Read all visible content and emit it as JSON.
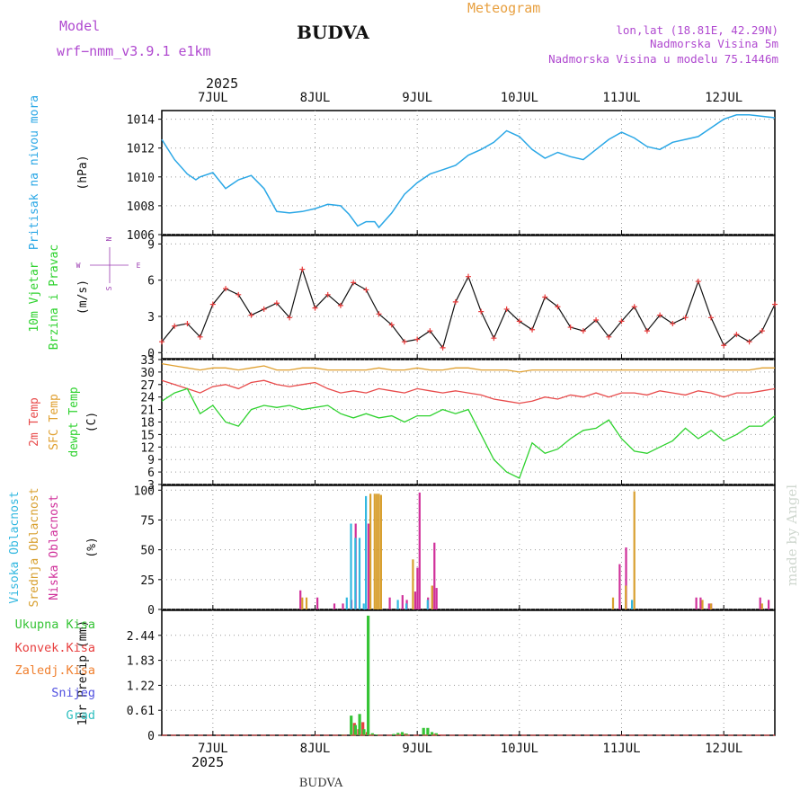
{
  "header": {
    "model_label": "Model",
    "model_name": "wrf−nmm_v3.9.1  e1km",
    "station": "BUDVA",
    "chart_kind": "Meteogram",
    "lonlat": "lon,lat (18.81E, 42.29N)",
    "elevation": "Nadmorska Visina 5m",
    "model_elevation": "Nadmorska Visina u modelu 75.1446m",
    "credit": "made by Angel",
    "footer_station": "BUDVA"
  },
  "time_axis": {
    "year_top": "2025",
    "year_bottom": "2025",
    "day_labels": [
      "7JUL",
      "8JUL",
      "9JUL",
      "10JUL",
      "11JUL",
      "12JUL"
    ],
    "start_hour": 0,
    "end_hour": 144,
    "day_hours": [
      12,
      36,
      60,
      84,
      108,
      132
    ]
  },
  "colors": {
    "pressure": "#2aa7e6",
    "wind_speed": "#111111",
    "wind_marker": "#e83a3a",
    "t2m": "#e84a4a",
    "sfc": "#e0a030",
    "dewpt": "#2fd22f",
    "cloud_high": "#32b8e0",
    "cloud_mid": "#d8a030",
    "cloud_low": "#d0309a",
    "total_precip": "#36c436",
    "conv_precip": "#e84040",
    "grid_precip": "#f08030",
    "snow": "#5050e0",
    "hail": "#30c0c0",
    "compass": "#9a3ab0",
    "header_purple": "#b04ad0",
    "header_orange": "#e8a040"
  },
  "chart_data": [
    {
      "id": "pressure",
      "type": "line",
      "title": "",
      "ylabel_lines": [
        "Pritisak na nivou mora",
        "(hPa)"
      ],
      "ylim": [
        1006,
        1014.6
      ],
      "yticks": [
        1006,
        1008,
        1010,
        1012,
        1014
      ],
      "grid": true,
      "x_hours": [
        0,
        3,
        6,
        8,
        9,
        12,
        15,
        18,
        21,
        24,
        27,
        30,
        33,
        36,
        39,
        42,
        44,
        46,
        48,
        50,
        51,
        54,
        57,
        60,
        63,
        66,
        69,
        72,
        75,
        78,
        81,
        84,
        87,
        90,
        93,
        96,
        99,
        102,
        105,
        108,
        111,
        114,
        117,
        120,
        123,
        126,
        129,
        132,
        135,
        138,
        141,
        144
      ],
      "values": [
        1012.6,
        1011.2,
        1010.2,
        1009.8,
        1010.0,
        1010.3,
        1009.2,
        1009.8,
        1010.1,
        1009.2,
        1007.6,
        1007.5,
        1007.6,
        1007.8,
        1008.1,
        1008.0,
        1007.4,
        1006.6,
        1006.9,
        1006.9,
        1006.5,
        1007.5,
        1008.8,
        1009.6,
        1010.2,
        1010.5,
        1010.8,
        1011.5,
        1011.9,
        1012.4,
        1013.2,
        1012.8,
        1011.9,
        1011.3,
        1011.7,
        1011.4,
        1011.2,
        1011.9,
        1012.6,
        1013.1,
        1012.7,
        1012.1,
        1011.9,
        1012.4,
        1012.6,
        1012.8,
        1013.4,
        1014.0,
        1014.3,
        1014.3,
        1014.2,
        1014.1
      ]
    },
    {
      "id": "wind",
      "type": "line",
      "title": "",
      "ylabel_lines": [
        "10m Vjetar",
        "Brzina i Pravac",
        "(m/s)"
      ],
      "compass": {
        "north": "N",
        "south": "S",
        "east": "E",
        "west": "W"
      },
      "ylim": [
        -0.5,
        9.7
      ],
      "yticks": [
        0,
        3,
        6,
        9
      ],
      "grid": true,
      "x_hours": [
        0,
        3,
        6,
        9,
        12,
        15,
        18,
        21,
        24,
        27,
        30,
        33,
        36,
        39,
        42,
        45,
        48,
        51,
        54,
        57,
        60,
        63,
        66,
        69,
        72,
        75,
        78,
        81,
        84,
        87,
        90,
        93,
        96,
        99,
        102,
        105,
        108,
        111,
        114,
        117,
        120,
        123,
        126,
        129,
        132,
        135,
        138,
        141,
        144
      ],
      "values": [
        0.9,
        2.2,
        2.4,
        1.3,
        4.0,
        5.3,
        4.8,
        3.1,
        3.6,
        4.1,
        2.9,
        6.9,
        3.7,
        4.8,
        3.9,
        5.8,
        5.2,
        3.2,
        2.3,
        0.9,
        1.1,
        1.8,
        0.4,
        4.2,
        6.3,
        3.4,
        1.2,
        3.6,
        2.6,
        1.9,
        4.6,
        3.8,
        2.1,
        1.8,
        2.7,
        1.3,
        2.6,
        3.8,
        1.8,
        3.1,
        2.4,
        2.9,
        5.9,
        2.9,
        0.6,
        1.5,
        0.9,
        1.8,
        4.0
      ]
    },
    {
      "id": "temperature",
      "type": "line",
      "title": "",
      "ylabel_lines": [
        "2m Temp",
        "SFC Temp",
        "dewpt Temp",
        "(C)"
      ],
      "ylim": [
        3,
        33
      ],
      "yticks": [
        3,
        6,
        9,
        12,
        15,
        18,
        21,
        24,
        27,
        30,
        33
      ],
      "grid": true,
      "x_hours": [
        0,
        3,
        6,
        9,
        12,
        15,
        18,
        21,
        24,
        27,
        30,
        33,
        36,
        39,
        42,
        45,
        48,
        51,
        54,
        57,
        60,
        63,
        66,
        69,
        72,
        75,
        78,
        81,
        84,
        87,
        90,
        93,
        96,
        99,
        102,
        105,
        108,
        111,
        114,
        117,
        120,
        123,
        126,
        129,
        132,
        135,
        138,
        141,
        144
      ],
      "series": [
        {
          "name": "2m Temp",
          "color_key": "t2m",
          "values": [
            28.0,
            27.0,
            26.0,
            25.0,
            26.5,
            27.0,
            26.0,
            27.5,
            28.0,
            27.0,
            26.5,
            27.0,
            27.5,
            26.0,
            25.0,
            25.5,
            25.0,
            26.0,
            25.5,
            25.0,
            26.0,
            25.5,
            25.0,
            25.5,
            25.0,
            24.5,
            23.5,
            23.0,
            22.5,
            23.0,
            24.0,
            23.5,
            24.5,
            24.0,
            25.0,
            24.0,
            25.0,
            25.0,
            24.5,
            25.5,
            25.0,
            24.5,
            25.5,
            25.0,
            24.0,
            25.0,
            25.0,
            25.5,
            26.0
          ]
        },
        {
          "name": "SFC Temp",
          "color_key": "sfc",
          "values": [
            32.0,
            31.5,
            31.0,
            30.5,
            31.0,
            31.0,
            30.5,
            31.0,
            31.5,
            30.5,
            30.5,
            31.0,
            31.0,
            30.5,
            30.5,
            30.5,
            30.5,
            31.0,
            30.5,
            30.5,
            31.0,
            30.5,
            30.5,
            31.0,
            31.0,
            30.5,
            30.5,
            30.5,
            30.0,
            30.5,
            30.5,
            30.5,
            30.5,
            30.5,
            30.5,
            30.5,
            30.5,
            30.5,
            30.5,
            30.5,
            30.5,
            30.5,
            30.5,
            30.5,
            30.5,
            30.5,
            30.5,
            31.0,
            31.0
          ]
        },
        {
          "name": "dewpt Temp",
          "color_key": "dewpt",
          "values": [
            23.0,
            25.0,
            26.0,
            20.0,
            22.0,
            18.0,
            17.0,
            21.0,
            22.0,
            21.5,
            22.0,
            21.0,
            21.5,
            22.0,
            20.0,
            19.0,
            20.0,
            19.0,
            19.5,
            18.0,
            19.5,
            19.5,
            21.0,
            20.0,
            21.0,
            15.0,
            9.0,
            6.0,
            4.5,
            13.0,
            10.5,
            11.5,
            14.0,
            16.0,
            16.5,
            18.5,
            14.0,
            11.0,
            10.5,
            12.0,
            13.5,
            16.5,
            14.0,
            16.0,
            13.5,
            15.0,
            17.0,
            17.0,
            19.5
          ]
        }
      ]
    },
    {
      "id": "cloud",
      "type": "bar",
      "title": "",
      "ylabel_lines": [
        "Visoka Oblacnost",
        "Srednja Oblacnost",
        "Niska Oblacnost",
        "(%)"
      ],
      "ylim": [
        0,
        104
      ],
      "yticks": [
        0,
        25,
        50,
        75,
        100
      ],
      "grid": true,
      "x_hours": [
        32,
        33,
        34,
        36,
        40,
        42,
        44,
        45,
        46,
        47,
        48,
        48.5,
        49,
        50,
        50.5,
        51,
        51.5,
        52,
        53,
        55,
        56,
        57,
        58,
        59,
        59.5,
        60,
        61,
        62,
        63,
        63.5,
        64,
        65,
        66,
        106,
        106.5,
        107,
        108,
        108.5,
        109,
        109.5,
        110,
        111,
        125,
        126,
        127,
        128,
        128.5,
        129,
        140,
        141,
        142
      ],
      "series": [
        {
          "name": "Visoka Oblacnost",
          "color_key": "cloud_high",
          "values": [
            0,
            0,
            0,
            0,
            0,
            0,
            10,
            72,
            60,
            60,
            5,
            95,
            0,
            0,
            0,
            0,
            0,
            0,
            0,
            0,
            8,
            0,
            5,
            0,
            0,
            0,
            0,
            0,
            8,
            0,
            0,
            0,
            0,
            0,
            0,
            0,
            0,
            0,
            0,
            0,
            0,
            8,
            0,
            0,
            0,
            0,
            0,
            0,
            0,
            0,
            0
          ]
        },
        {
          "name": "Srednja Oblacnost",
          "color_key": "cloud_mid",
          "values": [
            0,
            10,
            10,
            0,
            0,
            0,
            0,
            0,
            0,
            0,
            0,
            0,
            97,
            97,
            97,
            97,
            96,
            0,
            0,
            0,
            0,
            0,
            0,
            42,
            0,
            0,
            0,
            0,
            0,
            20,
            0,
            0,
            0,
            10,
            0,
            0,
            0,
            0,
            20,
            0,
            0,
            99,
            0,
            0,
            8,
            0,
            0,
            5,
            0,
            5,
            0
          ]
        },
        {
          "name": "Niska Oblacnost",
          "color_key": "cloud_low",
          "values": [
            16,
            0,
            0,
            10,
            5,
            5,
            8,
            72,
            0,
            0,
            72,
            0,
            0,
            0,
            0,
            0,
            0,
            0,
            10,
            0,
            12,
            8,
            0,
            15,
            35,
            98,
            0,
            10,
            20,
            56,
            18,
            0,
            0,
            0,
            0,
            38,
            0,
            52,
            0,
            0,
            0,
            0,
            10,
            10,
            0,
            5,
            5,
            0,
            10,
            0,
            8
          ]
        }
      ]
    },
    {
      "id": "precip",
      "type": "bar",
      "title": "",
      "ylabel_lines": [
        "1hr Precip (mm)"
      ],
      "legend": [
        "Ukupna Kisa",
        "Konvek.Kisa",
        "Zaledj.Kisa",
        "Snijeg",
        "Grad"
      ],
      "ylim": [
        0,
        3.05
      ],
      "yticks": [
        0,
        0.61,
        1.22,
        1.83,
        2.44
      ],
      "ytick_labels": [
        "0",
        "0.61",
        "1.22",
        "1.83",
        "2.44"
      ],
      "grid": true,
      "x_hours": [
        44,
        46,
        47,
        48,
        49,
        50,
        51,
        52,
        56,
        57,
        58,
        59,
        63,
        64,
        65,
        66
      ],
      "series": [
        {
          "name": "Ukupna Kisa",
          "color_key": "total_precip",
          "values": [
            0.02,
            0.48,
            0.25,
            0.52,
            0.15,
            2.92,
            0.05,
            0.02,
            0.03,
            0.06,
            0.08,
            0.04,
            0.18,
            0.18,
            0.08,
            0.05
          ]
        },
        {
          "name": "Konvek.Kisa",
          "color_key": "conv_precip",
          "values": [
            0.0,
            0.3,
            0.15,
            0.32,
            0.08,
            0.0,
            0.0,
            0.0,
            0.0,
            0.03,
            0.04,
            0.0,
            0.0,
            0.0,
            0.04,
            0.02
          ]
        },
        {
          "name": "Zaledj.Kisa",
          "color_key": "grid_precip",
          "values": [
            0,
            0,
            0,
            0,
            0,
            0,
            0,
            0,
            0,
            0,
            0,
            0,
            0,
            0,
            0,
            0
          ]
        },
        {
          "name": "Snijeg",
          "color_key": "snow",
          "values": [
            0,
            0,
            0,
            0,
            0,
            0,
            0,
            0,
            0,
            0,
            0,
            0,
            0,
            0,
            0,
            0
          ]
        },
        {
          "name": "Grad",
          "color_key": "hail",
          "values": [
            0,
            0,
            0,
            0,
            0,
            0,
            0,
            0,
            0,
            0,
            0,
            0,
            0,
            0,
            0,
            0
          ]
        }
      ]
    }
  ]
}
